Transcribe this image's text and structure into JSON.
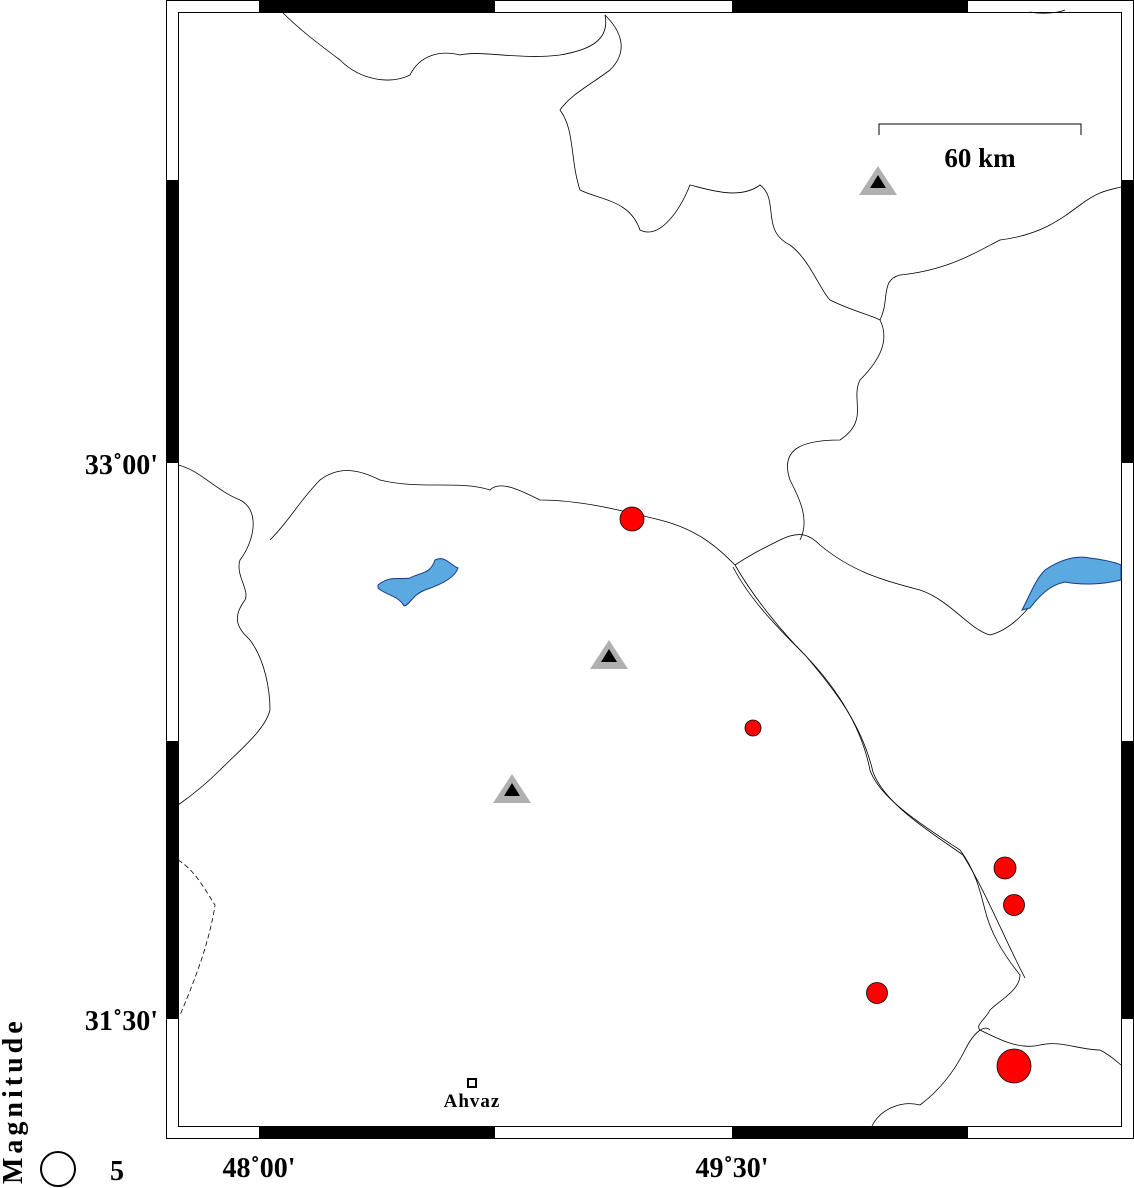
{
  "map": {
    "axes": {
      "x_ticks": [
        {
          "label": "48˚00'",
          "lon": 48.0
        },
        {
          "label": "49˚30'",
          "lon": 49.5
        }
      ],
      "y_ticks": [
        {
          "label": "33˚00'",
          "lat": 33.0
        },
        {
          "label": "31˚30'",
          "lat": 31.5
        }
      ]
    },
    "scale_bar": {
      "label": "60 km"
    },
    "city": {
      "name": "Ahvaz"
    },
    "legend": {
      "title": "Magnitude",
      "entries": [
        {
          "label": "5"
        }
      ]
    },
    "colors": {
      "event": "#ff0000",
      "station_outer": "#b0b0b0",
      "station_inner": "#000000",
      "water": "#5aa9e0",
      "border": "#000000"
    },
    "symbols": {
      "event": "circle",
      "station": "triangle",
      "city": "square"
    }
  }
}
